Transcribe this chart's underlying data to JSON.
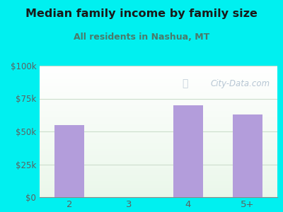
{
  "title": "Median family income by family size",
  "subtitle": "All residents in Nashua, MT",
  "categories": [
    "2",
    "3",
    "4",
    "5+"
  ],
  "values": [
    55000,
    0,
    70000,
    63000
  ],
  "bar_color": "#b39ddb",
  "background_color": "#00f0f0",
  "title_color": "#1a1a1a",
  "subtitle_color": "#4a7a6a",
  "tick_color": "#5d6060",
  "yticks": [
    0,
    25000,
    50000,
    75000,
    100000
  ],
  "ytick_labels": [
    "$0",
    "$25k",
    "$50k",
    "$75k",
    "$100k"
  ],
  "ylim": [
    0,
    100000
  ],
  "watermark": "City-Data.com",
  "watermark_color": "#aabccc",
  "grid_color": "#ccddcc",
  "bar_width": 0.5
}
